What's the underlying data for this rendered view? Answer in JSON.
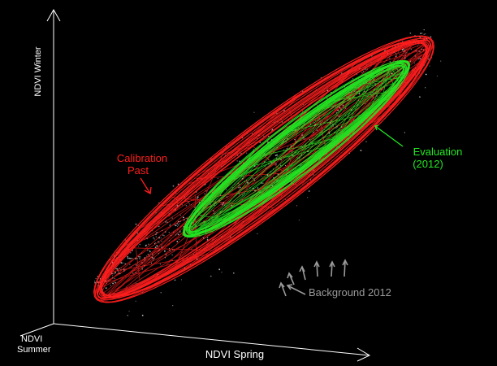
{
  "chart_data": {
    "type": "scatter",
    "axes": {
      "x_label": "NDVI Spring",
      "y_label": "NDVI Winter",
      "z_label_line1": "NDVI",
      "z_label_line2": "Summer"
    },
    "annotations": {
      "calibration_line1": "Calibration",
      "calibration_line2": "Past",
      "evaluation_line1": "Evaluation",
      "evaluation_line2": "(2012)",
      "background": "Background 2012"
    },
    "series": [
      {
        "name": "Calibration Past",
        "color": "#ff1e1e"
      },
      {
        "name": "Evaluation (2012)",
        "color": "#22e622"
      },
      {
        "name": "Background 2012",
        "color": "#c8c8c8"
      }
    ],
    "background_color": "#000000",
    "axis_color": "#ffffff",
    "annotation_arrow_color": "#9a9a9a"
  }
}
